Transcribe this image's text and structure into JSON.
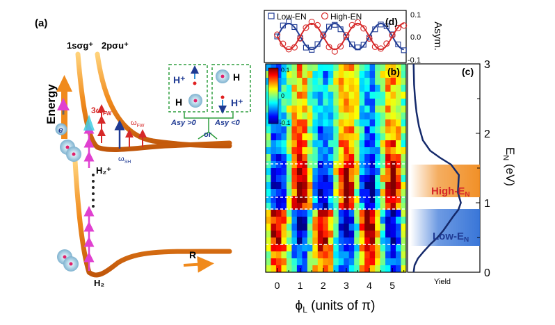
{
  "panel_a": {
    "label": "(a)",
    "energy_label": "Energy",
    "curve_lower": "1sσg⁺",
    "curve_upper": "2pσu⁺",
    "electron": "e",
    "ion": "H₂⁺",
    "neutral": "H₂",
    "r_label": "R",
    "w3": "3ω",
    "w3_sub": "FW",
    "wfw": "ω",
    "wfw_sub": "FW",
    "wsh": "ω",
    "wsh_sub": "SH",
    "box_left_top": "H⁺",
    "box_left_bottom": "H",
    "box_right_top": "H",
    "box_right_bottom": "H⁺",
    "asy_pos": "Asy >0",
    "asy_neg": "Asy <0",
    "or": "or"
  },
  "panel_b": {
    "label": "(b)",
    "colorbar_ticks": [
      "0.1",
      "0",
      "-0.1"
    ],
    "x_ticks": [
      "0",
      "1",
      "2",
      "3",
      "4",
      "5"
    ],
    "xlabel": "ϕL (units of π)"
  },
  "panel_c": {
    "label": "(c)",
    "y_ticks": [
      "0",
      "1",
      "2",
      "3"
    ],
    "ylabel": "EN (eV)",
    "high_label": "High-EN",
    "low_label": "Low-EN",
    "yield_label": "Yield"
  },
  "panel_d": {
    "label": "(d)",
    "legend_low": "Low-EN",
    "legend_high": "High-EN",
    "y_ticks": [
      "0.1",
      "0.0",
      "-0.1"
    ],
    "ylabel": "Asym."
  },
  "colors": {
    "orange": "#f08a1c",
    "magenta": "#e040d0",
    "blue": "#1f3a93",
    "red": "#d62828",
    "green": "#2e9e3e"
  },
  "chart_data": [
    {
      "type": "scatter",
      "panel": "d",
      "x_range": [
        0,
        5.5
      ],
      "ylim": [
        -0.1,
        0.1
      ],
      "series": [
        {
          "name": "Low-EN",
          "marker": "square",
          "color": "#1f3a93",
          "amplitude": 0.05,
          "phase_pi": 0.5,
          "period_pi": 2
        },
        {
          "name": "High-EN",
          "marker": "circle",
          "color": "#d62828",
          "amplitude": 0.05,
          "phase_pi": 1.5,
          "period_pi": 2
        }
      ]
    },
    {
      "type": "heatmap",
      "panel": "b",
      "xlim": [
        -0.5,
        5.6
      ],
      "ylim": [
        0,
        3
      ],
      "zlim": [
        -0.1,
        0.1
      ],
      "colormap": "jet",
      "period_pi": 2
    },
    {
      "type": "line",
      "panel": "c",
      "ylim": [
        0,
        3
      ],
      "x": [
        0.01,
        0.03,
        0.1,
        0.22,
        0.35,
        0.5,
        0.62,
        0.72,
        0.82,
        0.93,
        0.98,
        0.92,
        0.94,
        0.78,
        0.55,
        0.35,
        0.2,
        0.12,
        0.07,
        0.04,
        0.02,
        0.01
      ],
      "y": [
        0.0,
        0.1,
        0.2,
        0.3,
        0.4,
        0.5,
        0.6,
        0.7,
        0.8,
        0.9,
        1.0,
        1.15,
        1.4,
        1.55,
        1.65,
        1.75,
        1.9,
        2.1,
        2.3,
        2.5,
        2.7,
        3.0
      ],
      "bands": [
        {
          "label": "High-EN",
          "range": [
            1.07,
            1.53
          ],
          "color": "#f08a1c"
        },
        {
          "label": "Low-EN",
          "range": [
            0.37,
            0.9
          ],
          "color": "#2f6fd6"
        }
      ]
    }
  ]
}
